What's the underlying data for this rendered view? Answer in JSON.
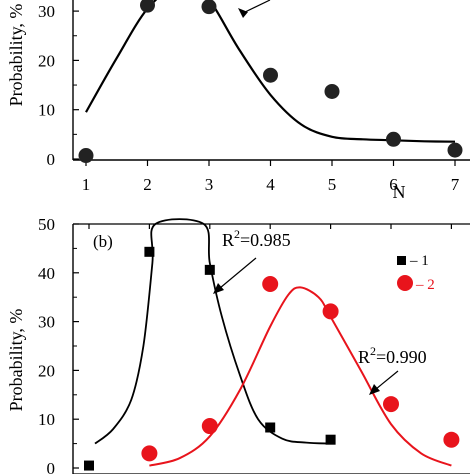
{
  "chart_data": [
    {
      "type": "scatter",
      "panel_label": "",
      "xlabel": "N",
      "ylabel": "Probability, %",
      "x_ticks": [
        "1",
        "2",
        "3",
        "4",
        "5",
        "6",
        "7"
      ],
      "y_ticks": [
        "0",
        "10",
        "20",
        "30"
      ],
      "xlim": [
        0.8,
        7.2
      ],
      "ylim": [
        0,
        36
      ],
      "grid": false,
      "series": [
        {
          "marker": "circle",
          "color": "#222222",
          "x": [
            1,
            2,
            3,
            4,
            5,
            6,
            7
          ],
          "y": [
            0.7,
            31.2,
            30.9,
            17.0,
            13.7,
            4.0,
            1.8
          ]
        }
      ],
      "fit_curve": {
        "color": "#000000",
        "x": [
          1.0,
          1.5,
          2.0,
          2.5,
          2.8,
          3.1,
          3.5,
          4.0,
          4.5,
          5.0,
          5.5,
          6.0,
          6.5,
          7.0
        ],
        "y": [
          9.5,
          20.5,
          30.5,
          35.5,
          35.5,
          30.5,
          22.0,
          13.0,
          7.0,
          4.5,
          4.0,
          3.8,
          3.6,
          3.5
        ]
      }
    },
    {
      "type": "scatter",
      "panel_label": "(b)",
      "xlabel": "",
      "ylabel": "Probability, %",
      "y_ticks": [
        "0",
        "10",
        "20",
        "30",
        "40",
        "50"
      ],
      "xlim": [
        0.8,
        7.2
      ],
      "ylim": [
        0,
        50
      ],
      "grid": false,
      "legend_position": "top-right",
      "legend": [
        "1",
        "2"
      ],
      "annotations": [
        "R2=0.985",
        "R2=0.990"
      ],
      "series": [
        {
          "name": "1",
          "marker": "square",
          "color": "#000000",
          "x": [
            1,
            2,
            3,
            4,
            5
          ],
          "y": [
            0.5,
            44.3,
            40.6,
            8.3,
            5.8
          ]
        },
        {
          "name": "2",
          "marker": "circle",
          "color": "#e8141c",
          "x": [
            2,
            3,
            4,
            5,
            6,
            7
          ],
          "y": [
            3.0,
            8.6,
            37.7,
            32.1,
            13.1,
            5.8
          ]
        }
      ],
      "fit_curves": [
        {
          "series": "1",
          "color": "#000000",
          "x": [
            1.1,
            1.4,
            1.7,
            1.9,
            2.05,
            2.1,
            2.9,
            3.0,
            3.2,
            3.5,
            3.8,
            4.2,
            4.6,
            5.0
          ],
          "y": [
            5.0,
            8.0,
            14.0,
            25.0,
            42.0,
            50.0,
            50.0,
            42.0,
            31.0,
            19.0,
            10.0,
            6.0,
            5.2,
            5.0
          ]
        },
        {
          "series": "2",
          "color": "#e8141c",
          "x": [
            2.0,
            2.5,
            3.0,
            3.5,
            4.0,
            4.3,
            4.5,
            4.8,
            5.0,
            5.5,
            6.0,
            6.5,
            7.0
          ],
          "y": [
            0.5,
            2.0,
            6.5,
            16.0,
            29.0,
            35.5,
            37.0,
            35.0,
            31.0,
            20.0,
            9.0,
            3.0,
            0.5
          ]
        }
      ]
    }
  ]
}
